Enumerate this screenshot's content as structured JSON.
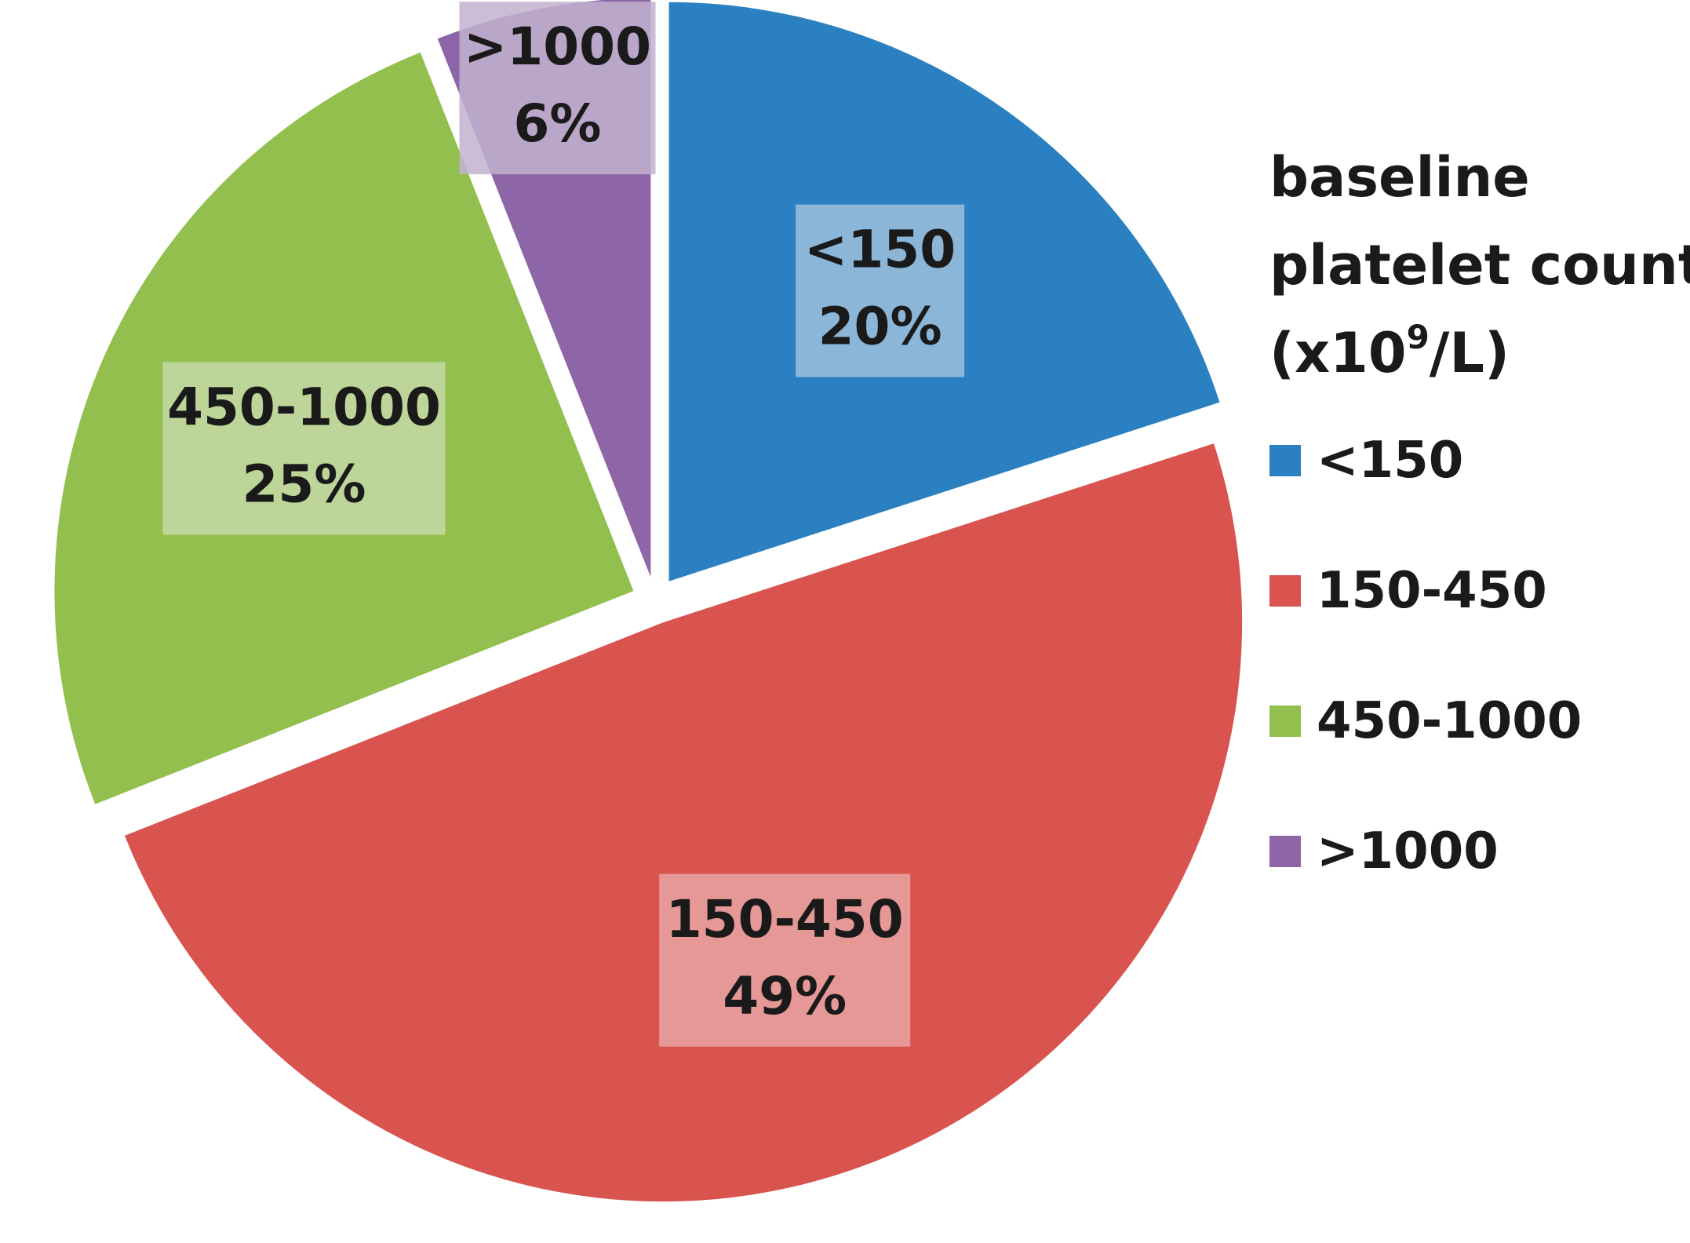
{
  "chart_data": {
    "type": "pie",
    "legend_title_parts": {
      "line1": "baseline",
      "line2": "platelet count",
      "line3_before_sup": "(x10",
      "line3_sup": "9",
      "line3_after_sup": "/L)"
    },
    "legend_position": "right",
    "slices": [
      {
        "label": "<150",
        "value": 20,
        "display": "20%",
        "color": "#2a80c0",
        "label_bg": "#9ebfdc"
      },
      {
        "label": "150-450",
        "value": 49,
        "display": "49%",
        "color": "#d9534f",
        "label_bg": "#e6a4a2"
      },
      {
        "label": "450-1000",
        "value": 25,
        "display": "25%",
        "color": "#93bf4f",
        "label_bg": "#c6d8a7"
      },
      {
        "label": ">1000",
        "value": 6,
        "display": "6%",
        "color": "#8e66a8",
        "label_bg": "#c2b1cf"
      }
    ]
  }
}
